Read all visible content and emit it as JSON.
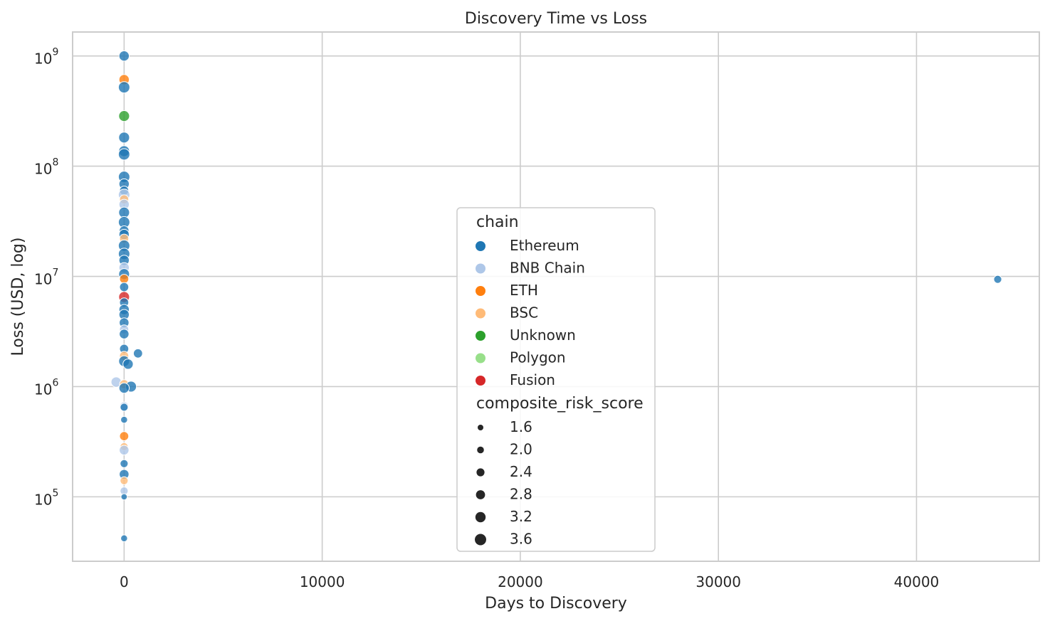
{
  "chart_data": {
    "type": "scatter",
    "title": "Discovery Time vs Loss",
    "xlabel": "Days to Discovery",
    "ylabel": "Loss (USD, log)",
    "x_scale": "linear",
    "y_scale": "log",
    "xlim": [
      -2600,
      46200
    ],
    "ylim": [
      26000,
      1650000000
    ],
    "x_ticks": [
      0,
      10000,
      20000,
      30000,
      40000
    ],
    "y_ticks": [
      {
        "value": 100000,
        "base": "10",
        "exp": "5"
      },
      {
        "value": 1000000,
        "base": "10",
        "exp": "6"
      },
      {
        "value": 10000000,
        "base": "10",
        "exp": "7"
      },
      {
        "value": 100000000,
        "base": "10",
        "exp": "8"
      },
      {
        "value": 1000000000,
        "base": "10",
        "exp": "9"
      }
    ],
    "grid": true,
    "legend_placement": "center",
    "hue_title": "chain",
    "size_title": "composite_risk_score",
    "hue_legend": [
      {
        "label": "Ethereum",
        "color": "#1f77b4"
      },
      {
        "label": "BNB Chain",
        "color": "#aec7e8"
      },
      {
        "label": "ETH",
        "color": "#ff7f0e"
      },
      {
        "label": "BSC",
        "color": "#ffbb78"
      },
      {
        "label": "Unknown",
        "color": "#2ca02c"
      },
      {
        "label": "Polygon",
        "color": "#98df8a"
      },
      {
        "label": "Fusion",
        "color": "#d62728"
      }
    ],
    "size_legend": [
      {
        "label": "1.6",
        "value": 1.6
      },
      {
        "label": "2.0",
        "value": 2.0
      },
      {
        "label": "2.4",
        "value": 2.4
      },
      {
        "label": "2.8",
        "value": 2.8
      },
      {
        "label": "3.2",
        "value": 3.2
      },
      {
        "label": "3.6",
        "value": 3.6
      }
    ],
    "points": [
      {
        "chain": "Ethereum",
        "x": 0,
        "y": 1000000000,
        "score": 3.2
      },
      {
        "chain": "ETH",
        "x": 0,
        "y": 610000000,
        "score": 3.2
      },
      {
        "chain": "Ethereum",
        "x": 0,
        "y": 520000000,
        "score": 3.6
      },
      {
        "chain": "Unknown",
        "x": 0,
        "y": 285000000,
        "score": 3.4
      },
      {
        "chain": "Ethereum",
        "x": 0,
        "y": 182000000,
        "score": 3.4
      },
      {
        "chain": "Ethereum",
        "x": 0,
        "y": 137000000,
        "score": 3.4
      },
      {
        "chain": "Ethereum",
        "x": 0,
        "y": 128000000,
        "score": 3.6
      },
      {
        "chain": "Ethereum",
        "x": 0,
        "y": 80000000,
        "score": 3.6
      },
      {
        "chain": "Ethereum",
        "x": 0,
        "y": 69000000,
        "score": 3.2
      },
      {
        "chain": "Ethereum",
        "x": 0,
        "y": 60000000,
        "score": 2.8
      },
      {
        "chain": "BNB Chain",
        "x": 0,
        "y": 55000000,
        "score": 3.6
      },
      {
        "chain": "BSC",
        "x": 0,
        "y": 50000000,
        "score": 2.8
      },
      {
        "chain": "BNB Chain",
        "x": 0,
        "y": 45000000,
        "score": 3.2
      },
      {
        "chain": "Ethereum",
        "x": 0,
        "y": 38000000,
        "score": 3.4
      },
      {
        "chain": "Ethereum",
        "x": 0,
        "y": 31000000,
        "score": 3.6
      },
      {
        "chain": "Ethereum",
        "x": 0,
        "y": 26000000,
        "score": 3.0
      },
      {
        "chain": "Ethereum",
        "x": 0,
        "y": 24000000,
        "score": 3.2
      },
      {
        "chain": "BSC",
        "x": 0,
        "y": 22000000,
        "score": 2.8
      },
      {
        "chain": "Ethereum",
        "x": 0,
        "y": 19000000,
        "score": 3.6
      },
      {
        "chain": "Ethereum",
        "x": 0,
        "y": 16000000,
        "score": 3.6
      },
      {
        "chain": "Ethereum",
        "x": 0,
        "y": 14000000,
        "score": 3.2
      },
      {
        "chain": "BNB Chain",
        "x": 0,
        "y": 12000000,
        "score": 3.2
      },
      {
        "chain": "Ethereum",
        "x": 0,
        "y": 10500000,
        "score": 3.4
      },
      {
        "chain": "ETH",
        "x": 0,
        "y": 9500000,
        "score": 2.8
      },
      {
        "chain": "Ethereum",
        "x": 0,
        "y": 8000000,
        "score": 2.8
      },
      {
        "chain": "Fusion",
        "x": 0,
        "y": 6500000,
        "score": 3.4
      },
      {
        "chain": "Ethereum",
        "x": 0,
        "y": 5800000,
        "score": 2.8
      },
      {
        "chain": "Ethereum",
        "x": 0,
        "y": 5000000,
        "score": 3.2
      },
      {
        "chain": "Ethereum",
        "x": 0,
        "y": 4500000,
        "score": 3.2
      },
      {
        "chain": "Ethereum",
        "x": 0,
        "y": 3800000,
        "score": 3.0
      },
      {
        "chain": "BNB Chain",
        "x": 0,
        "y": 3300000,
        "score": 2.8
      },
      {
        "chain": "Ethereum",
        "x": 0,
        "y": 3000000,
        "score": 3.0
      },
      {
        "chain": "Ethereum",
        "x": 0,
        "y": 2200000,
        "score": 2.8
      },
      {
        "chain": "Ethereum",
        "x": 700,
        "y": 2000000,
        "score": 2.8
      },
      {
        "chain": "BSC",
        "x": 0,
        "y": 1900000,
        "score": 2.8
      },
      {
        "chain": "Ethereum",
        "x": 0,
        "y": 1700000,
        "score": 3.4
      },
      {
        "chain": "Ethereum",
        "x": 200,
        "y": 1600000,
        "score": 3.2
      },
      {
        "chain": "BNB Chain",
        "x": -400,
        "y": 1100000,
        "score": 3.2
      },
      {
        "chain": "BSC",
        "x": 0,
        "y": 1050000,
        "score": 2.8
      },
      {
        "chain": "Ethereum",
        "x": 350,
        "y": 1000000,
        "score": 3.4
      },
      {
        "chain": "Ethereum",
        "x": 0,
        "y": 970000,
        "score": 3.2
      },
      {
        "chain": "BNB Chain",
        "x": 0,
        "y": 660000,
        "score": 2.8
      },
      {
        "chain": "Ethereum",
        "x": 0,
        "y": 650000,
        "score": 2.4
      },
      {
        "chain": "Ethereum",
        "x": 0,
        "y": 500000,
        "score": 2.0
      },
      {
        "chain": "ETH",
        "x": 0,
        "y": 355000,
        "score": 2.8
      },
      {
        "chain": "BSC",
        "x": 0,
        "y": 285000,
        "score": 2.4
      },
      {
        "chain": "BNB Chain",
        "x": 0,
        "y": 265000,
        "score": 3.0
      },
      {
        "chain": "Ethereum",
        "x": 0,
        "y": 200000,
        "score": 2.4
      },
      {
        "chain": "Ethereum",
        "x": 0,
        "y": 160000,
        "score": 3.0
      },
      {
        "chain": "BSC",
        "x": 0,
        "y": 140000,
        "score": 2.4
      },
      {
        "chain": "BNB Chain",
        "x": 0,
        "y": 113000,
        "score": 2.4
      },
      {
        "chain": "Ethereum",
        "x": 0,
        "y": 100000,
        "score": 1.8
      },
      {
        "chain": "Ethereum",
        "x": 0,
        "y": 42000,
        "score": 2.0
      },
      {
        "chain": "Ethereum",
        "x": 44100,
        "y": 9400000,
        "score": 2.4
      }
    ]
  }
}
